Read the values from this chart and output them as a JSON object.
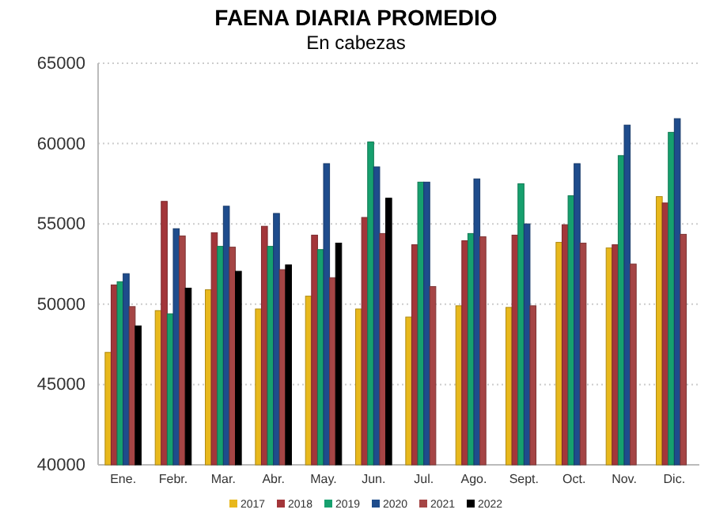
{
  "chart_data": {
    "type": "bar",
    "title": "FAENA DIARIA PROMEDIO",
    "subtitle": "En cabezas",
    "categories": [
      "Ene.",
      "Febr.",
      "Mar.",
      "Abr.",
      "May.",
      "Jun.",
      "Jul.",
      "Ago.",
      "Sept.",
      "Oct.",
      "Nov.",
      "Dic."
    ],
    "series": [
      {
        "name": "2017",
        "color": "#e8b81c",
        "values": [
          47000,
          49600,
          50900,
          49700,
          50500,
          49700,
          49200,
          49900,
          49800,
          53850,
          53500,
          56700
        ]
      },
      {
        "name": "2018",
        "color": "#a3363a",
        "values": [
          51200,
          56400,
          54450,
          54850,
          54300,
          55400,
          53700,
          53950,
          54300,
          54950,
          53700,
          56300
        ]
      },
      {
        "name": "2019",
        "color": "#16a06e",
        "values": [
          51400,
          49400,
          53600,
          53600,
          53400,
          60100,
          57600,
          54400,
          57500,
          56750,
          59250,
          60700
        ]
      },
      {
        "name": "2020",
        "color": "#1e4c8c",
        "values": [
          51900,
          54700,
          56100,
          55650,
          58750,
          58550,
          57600,
          57800,
          55000,
          58750,
          61150,
          61550
        ]
      },
      {
        "name": "2021",
        "color": "#a54545",
        "values": [
          49850,
          54250,
          53550,
          52150,
          51650,
          54400,
          51100,
          54200,
          49900,
          53800,
          52500,
          54350
        ]
      },
      {
        "name": "2022",
        "color": "#000000",
        "values": [
          48650,
          51000,
          52050,
          52450,
          53800,
          56600,
          null,
          null,
          null,
          null,
          null,
          null
        ]
      }
    ],
    "ylim": [
      40000,
      65000
    ],
    "yticks": [
      40000,
      45000,
      50000,
      55000,
      60000,
      65000
    ],
    "grid": "y",
    "legend": "bottom"
  }
}
